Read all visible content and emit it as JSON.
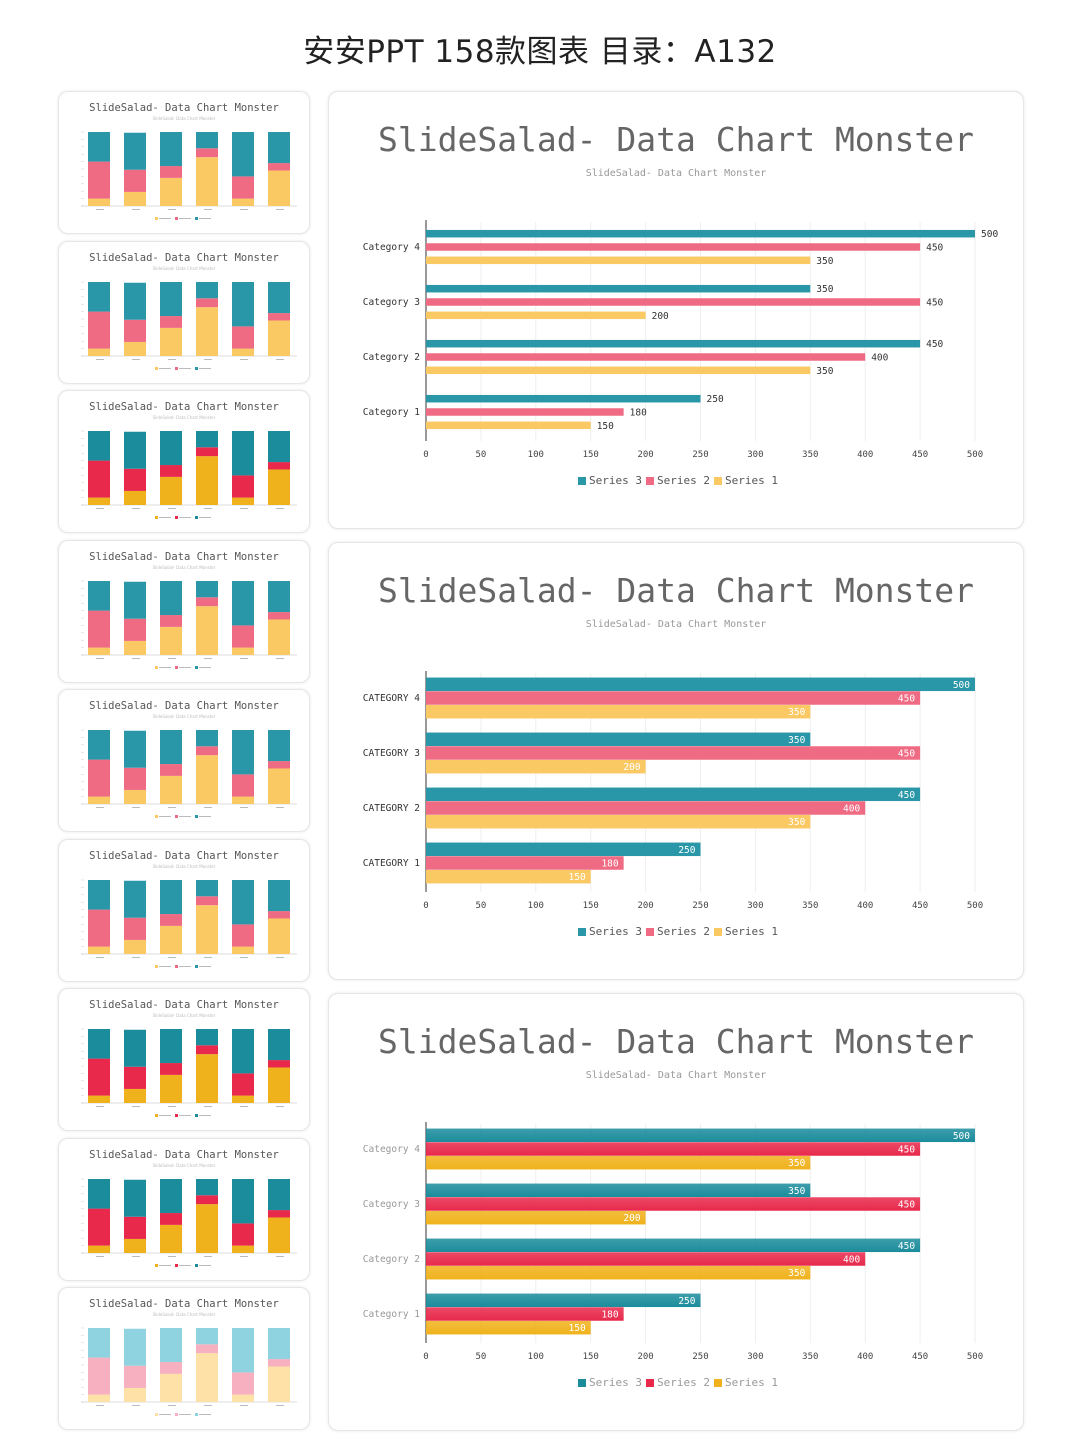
{
  "page_title": "安安PPT 158款图表 目录：A132",
  "colors": {
    "teal": "#2a97a8",
    "pink": "#ef6b84",
    "yellow": "#fbc964",
    "teal_dark": "#1b8c9c",
    "red": "#e8294c",
    "gold": "#f0b21c",
    "teal_light": "#8fd3e0",
    "pink_light": "#f7b0bf",
    "yellow_light": "#fde1a6"
  },
  "thumbnails": [
    {
      "title": "SlideSalad- Data Chart Monster",
      "subtitle": "SlideSalad- Data Chart Monster"
    },
    {
      "title": "SlideSalad- Data Chart Monster",
      "subtitle": "SlideSalad- Data Chart Monster"
    },
    {
      "title": "SlideSalad- Data Chart Monster",
      "subtitle": "SlideSalad- Data Chart Monster"
    },
    {
      "title": "SlideSalad- Data Chart Monster",
      "subtitle": "SlideSalad- Data Chart Monster"
    },
    {
      "title": "SlideSalad- Data Chart Monster",
      "subtitle": "SlideSalad- Data Chart Monster"
    },
    {
      "title": "SlideSalad- Data Chart Monster",
      "subtitle": "SlideSalad- Data Chart Monster"
    },
    {
      "title": "SlideSalad- Data Chart Monster",
      "subtitle": "SlideSalad- Data Chart Monster"
    },
    {
      "title": "SlideSalad- Data Chart Monster",
      "subtitle": "SlideSalad- Data Chart Monster"
    },
    {
      "title": "SlideSalad- Data Chart Monster",
      "subtitle": "SlideSalad- Data Chart Monster"
    }
  ],
  "chart_data": [
    {
      "type": "bar",
      "orientation": "horizontal",
      "title": "SlideSalad- Data Chart Monster",
      "subtitle": "SlideSalad- Data Chart Monster",
      "categories": [
        "Category 1",
        "Category 2",
        "Category 3",
        "Category 4"
      ],
      "series": [
        {
          "name": "Series 3",
          "values": [
            250,
            450,
            350,
            500
          ]
        },
        {
          "name": "Series 2",
          "values": [
            180,
            400,
            450,
            450
          ]
        },
        {
          "name": "Series 1",
          "values": [
            150,
            350,
            200,
            350
          ]
        }
      ],
      "xticks": [
        "0",
        "50",
        "100",
        "150",
        "200",
        "250",
        "300",
        "350",
        "400",
        "450",
        "500"
      ],
      "xlim": [
        0,
        500
      ],
      "legend": "bottom",
      "style": "thin bars, labels outside"
    },
    {
      "type": "bar",
      "orientation": "horizontal",
      "title": "SlideSalad- Data Chart Monster",
      "subtitle": "SlideSalad- Data Chart Monster",
      "categories": [
        "CATEGORY 1",
        "CATEGORY 2",
        "CATEGORY 3",
        "CATEGORY 4"
      ],
      "series": [
        {
          "name": "Series 3",
          "values": [
            250,
            450,
            350,
            500
          ]
        },
        {
          "name": "Series 2",
          "values": [
            180,
            400,
            450,
            450
          ]
        },
        {
          "name": "Series 1",
          "values": [
            150,
            350,
            200,
            350
          ]
        }
      ],
      "xticks": [
        "0",
        "50",
        "100",
        "150",
        "200",
        "250",
        "300",
        "350",
        "400",
        "450",
        "500"
      ],
      "xlim": [
        0,
        500
      ],
      "legend": "bottom",
      "style": "thick bars, labels inside"
    },
    {
      "type": "bar",
      "orientation": "horizontal",
      "title": "SlideSalad- Data Chart Monster",
      "subtitle": "SlideSalad- Data Chart Monster",
      "categories": [
        "Category 1",
        "Category 2",
        "Category 3",
        "Category 4"
      ],
      "series": [
        {
          "name": "Series 3",
          "values": [
            250,
            450,
            350,
            500
          ]
        },
        {
          "name": "Series 2",
          "values": [
            180,
            400,
            450,
            450
          ]
        },
        {
          "name": "Series 1",
          "values": [
            150,
            350,
            200,
            350
          ]
        }
      ],
      "xticks": [
        "0",
        "50",
        "100",
        "150",
        "200",
        "250",
        "300",
        "350",
        "400",
        "450",
        "500"
      ],
      "xlim": [
        0,
        500
      ],
      "legend": "bottom",
      "style": "thick gradient bars, labels inside"
    },
    {
      "type": "bar",
      "orientation": "vertical",
      "stacked": true,
      "note": "thumbnail stacked column chart (values estimated)",
      "categories": [
        "Category 1",
        "Category 2",
        "Category 3",
        "Category 4",
        "Category 5",
        "Category 6"
      ],
      "series": [
        {
          "name": "Series 1",
          "values": [
            50,
            95,
            190,
            330,
            50,
            240
          ]
        },
        {
          "name": "Series 2",
          "values": [
            250,
            150,
            80,
            60,
            150,
            50
          ]
        },
        {
          "name": "Series 3",
          "values": [
            200,
            250,
            230,
            110,
            300,
            210
          ]
        }
      ],
      "ylim": [
        0,
        500
      ]
    }
  ]
}
